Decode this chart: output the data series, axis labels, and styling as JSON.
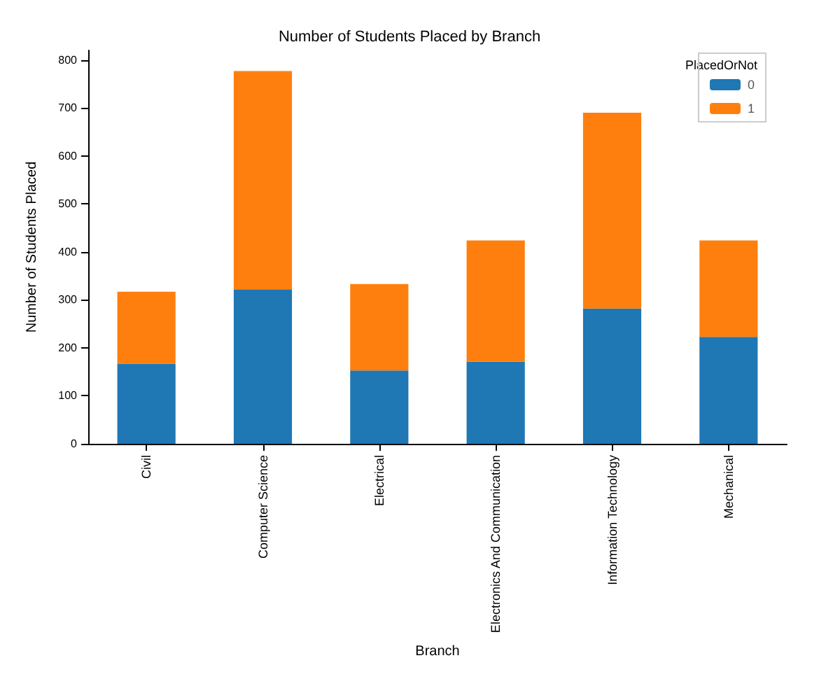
{
  "chart_data": {
    "type": "bar",
    "title": "Number of Students Placed by Branch",
    "xlabel": "Branch",
    "ylabel": "Number of Students Placed",
    "legend_title": "PlacedOrNot",
    "categories": [
      "Civil",
      "Computer Science",
      "Electrical",
      "Electronics And Communication",
      "Information Technology",
      "Mechanical"
    ],
    "series": [
      {
        "name": "0",
        "color": "#1f77b4",
        "values": [
          167,
          322,
          153,
          171,
          282,
          223
        ]
      },
      {
        "name": "1",
        "color": "#ff7f0e",
        "values": [
          150,
          455,
          180,
          253,
          408,
          201
        ]
      }
    ],
    "stacked": true,
    "ylim": [
      0,
      820
    ],
    "yticks": [
      0,
      100,
      200,
      300,
      400,
      500,
      600,
      700,
      800
    ],
    "legend": "top right",
    "grid": false
  }
}
